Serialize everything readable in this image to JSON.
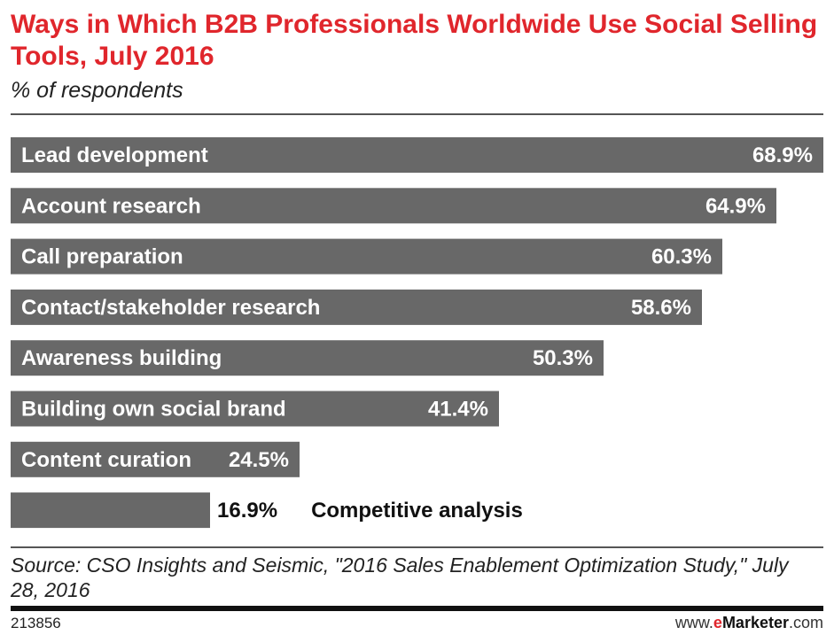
{
  "chart_data": {
    "type": "bar",
    "orientation": "horizontal",
    "title": "Ways in Which B2B Professionals Worldwide Use Social Selling Tools, July 2016",
    "subtitle": "% of respondents",
    "categories": [
      "Lead development",
      "Account research",
      "Call preparation",
      "Contact/stakeholder research",
      "Awareness building",
      "Building own social brand",
      "Content curation",
      "Competitive analysis"
    ],
    "values": [
      68.9,
      64.9,
      60.3,
      58.6,
      50.3,
      41.4,
      24.5,
      16.9
    ],
    "value_labels": [
      "68.9%",
      "64.9%",
      "60.3%",
      "58.6%",
      "50.3%",
      "41.4%",
      "24.5%",
      "16.9%"
    ],
    "xlim": [
      0,
      68.9
    ],
    "bar_color": "#686868",
    "title_color": "#e0262c"
  },
  "footer": {
    "source": "Source: CSO Insights and Seismic, \"2016 Sales Enablement Optimization Study,\" July 28, 2016",
    "chart_id": "213856",
    "brand_prefix": "www.",
    "brand_e": "e",
    "brand_main": "Marketer",
    "brand_suffix": ".com"
  }
}
